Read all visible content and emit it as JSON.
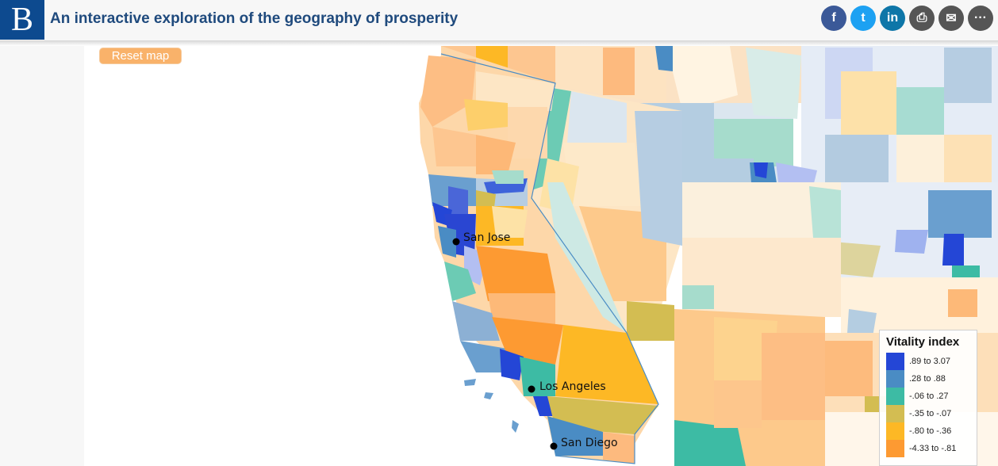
{
  "header": {
    "logo_letter": "B",
    "title": "An interactive exploration of the geography of prosperity",
    "share": [
      {
        "name": "facebook-button",
        "icon": "facebook-icon",
        "glyph": "f",
        "color": "#3b5998"
      },
      {
        "name": "twitter-button",
        "icon": "twitter-icon",
        "glyph": "t",
        "color": "#1da1f2"
      },
      {
        "name": "linkedin-button",
        "icon": "linkedin-icon",
        "glyph": "in",
        "color": "#0e76a8"
      },
      {
        "name": "print-button",
        "icon": "printer-icon",
        "glyph": "⎙",
        "color": "#555555"
      },
      {
        "name": "email-button",
        "icon": "envelope-icon",
        "glyph": "✉",
        "color": "#555555"
      },
      {
        "name": "more-button",
        "icon": "more-dots-icon",
        "glyph": "···",
        "color": "#555555"
      }
    ]
  },
  "map": {
    "reset_label": "Reset map",
    "cities": [
      {
        "name": "San Jose"
      },
      {
        "name": "Los Angeles"
      },
      {
        "name": "San Diego"
      }
    ]
  },
  "legend": {
    "title": "Vitality index",
    "items": [
      {
        "label": ".89 to 3.07",
        "color": "#2446d6"
      },
      {
        "label": ".28 to .88",
        "color": "#4a8cc4"
      },
      {
        "label": "-.06 to .27",
        "color": "#3dbba4"
      },
      {
        "label": "-.35 to -.07",
        "color": "#d3bd52"
      },
      {
        "label": "-.80 to -.36",
        "color": "#fdb825"
      },
      {
        "label": "-4.33 to -.81",
        "color": "#fd9a32"
      }
    ]
  }
}
